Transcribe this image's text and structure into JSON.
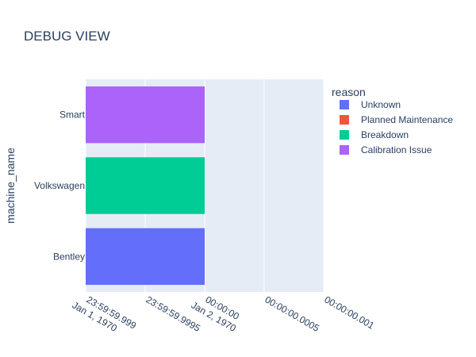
{
  "chart_data": {
    "type": "bar",
    "orientation": "horizontal",
    "title": "DEBUG VIEW",
    "xlabel": "",
    "ylabel": "machine_name",
    "categories": [
      "Bentley",
      "Volkswagen",
      "Smart"
    ],
    "x_ticks": [
      {
        "value": -0.001,
        "lines": [
          "23:59:59.999",
          "Jan 1, 1970"
        ]
      },
      {
        "value": -0.0005,
        "lines": [
          "23:59:59.9995"
        ]
      },
      {
        "value": 0,
        "lines": [
          "00:00:00",
          "Jan 2, 1970"
        ]
      },
      {
        "value": 0.0005,
        "lines": [
          "00:00:00.0005"
        ]
      },
      {
        "value": 0.001,
        "lines": [
          "00:00:00.001"
        ]
      }
    ],
    "xlim": [
      -0.001,
      0.001
    ],
    "grid": true,
    "legend": {
      "title": "reason",
      "placement": "right",
      "entries": [
        {
          "name": "Unknown",
          "color": "#636efa"
        },
        {
          "name": "Planned Maintenance",
          "color": "#ef553b"
        },
        {
          "name": "Breakdown",
          "color": "#00cc96"
        },
        {
          "name": "Calibration Issue",
          "color": "#ab63fa"
        }
      ]
    },
    "bars": [
      {
        "category": "Bentley",
        "reason": "Unknown",
        "start": -0.001,
        "end": 0,
        "color": "#636efa"
      },
      {
        "category": "Volkswagen",
        "reason": "Breakdown",
        "start": -0.001,
        "end": 0,
        "color": "#00cc96"
      },
      {
        "category": "Smart",
        "reason": "Calibration Issue",
        "start": -0.001,
        "end": 0,
        "color": "#ab63fa"
      }
    ],
    "plot_bg": "#e5ecf6",
    "grid_color": "#ffffff"
  }
}
